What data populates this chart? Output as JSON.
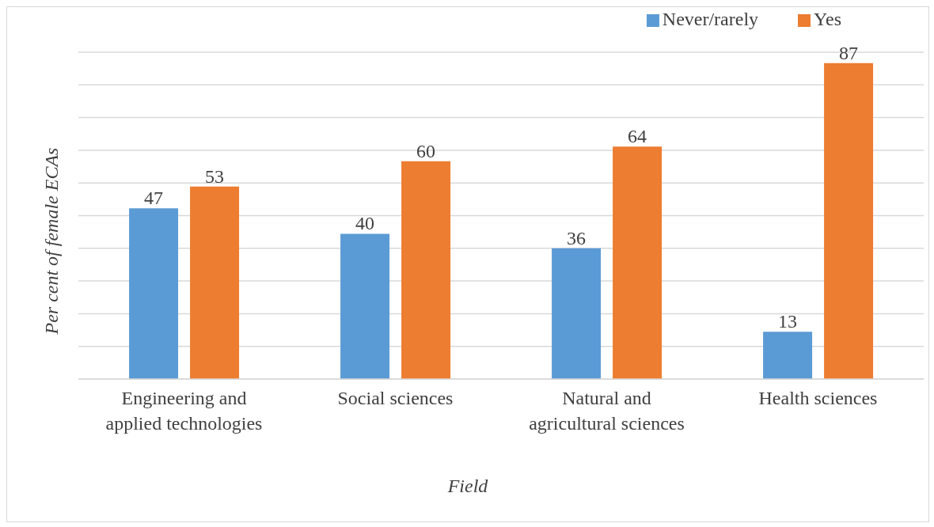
{
  "chart_data": {
    "type": "bar",
    "xlabel": "Field",
    "ylabel": "Per cent of female ECAs",
    "categories": [
      "Engineering and applied technologies",
      "Social sciences",
      "Natural and agricultural sciences",
      "Health sciences"
    ],
    "series": [
      {
        "name": "Never/rarely",
        "color": "#5b9bd5",
        "values": [
          47,
          40,
          36,
          13
        ]
      },
      {
        "name": "Yes",
        "color": "#ed7d31",
        "values": [
          53,
          60,
          64,
          87
        ]
      }
    ],
    "tick_labels": "x",
    "grid": "y",
    "legend": "top right",
    "data_labels": true
  }
}
